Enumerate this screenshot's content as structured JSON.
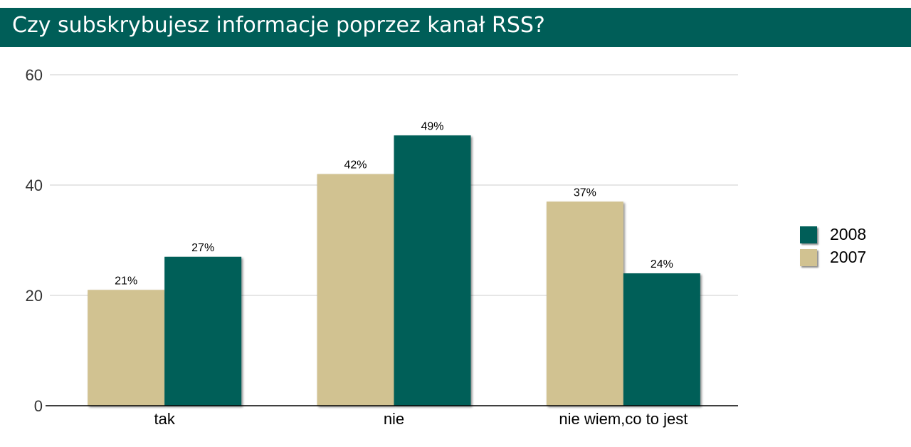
{
  "header": {
    "title": "Czy subskrybujesz informacje poprzez kanał RSS?"
  },
  "colors": {
    "header_bg": "#005e58",
    "series_2008": "#005e58",
    "series_2007": "#d1c291",
    "grid": "#cccccc",
    "axis": "#000000"
  },
  "chart_data": {
    "type": "bar",
    "title": "Czy subskrybujesz informacje poprzez kanał RSS?",
    "xlabel": "",
    "ylabel": "",
    "categories": [
      "tak",
      "nie",
      "nie wiem,co to jest"
    ],
    "series": [
      {
        "name": "2007",
        "values": [
          21,
          42,
          37
        ],
        "labels": [
          "21%",
          "42%",
          "37%"
        ],
        "color": "#d1c291"
      },
      {
        "name": "2008",
        "values": [
          27,
          49,
          24
        ],
        "labels": [
          "27%",
          "49%",
          "24%"
        ],
        "color": "#005e58"
      }
    ],
    "ylim": [
      0,
      60
    ],
    "yticks": [
      0,
      20,
      40,
      60
    ],
    "grid": true,
    "legend_position": "right",
    "legend_order": [
      "2008",
      "2007"
    ]
  }
}
